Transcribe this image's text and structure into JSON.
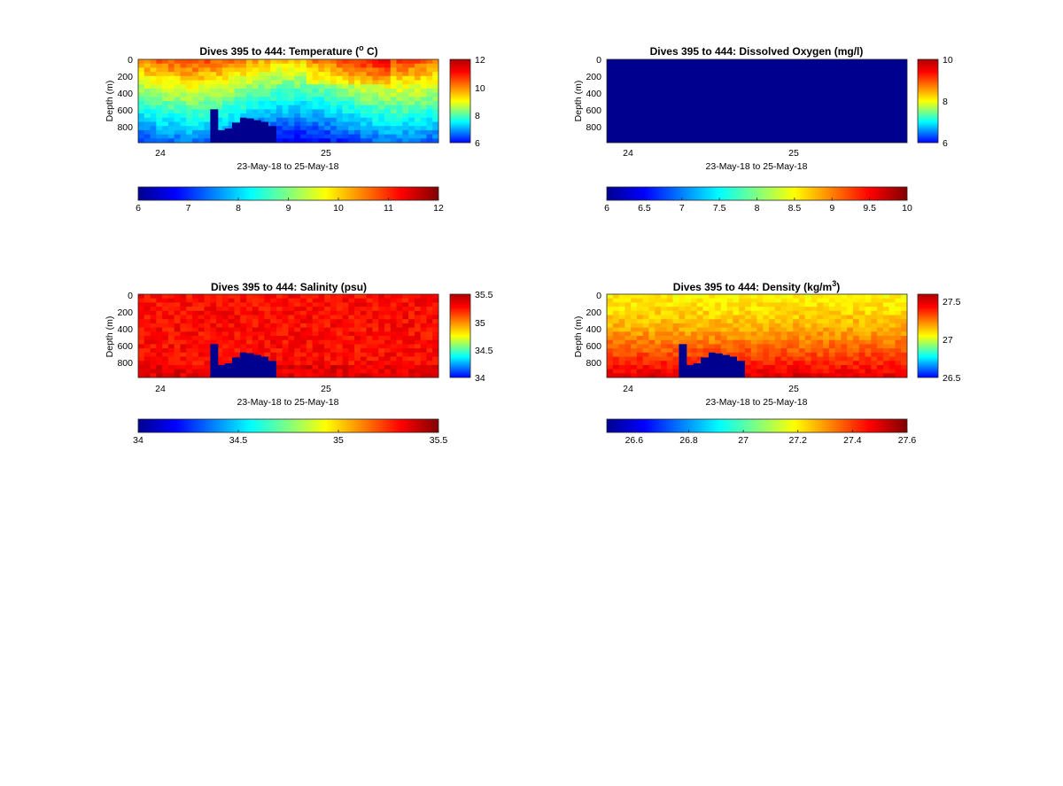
{
  "colormap": "jet",
  "panels": [
    {
      "title_prefix": "Dives 395 to 444: Temperature (",
      "title_sup": "o",
      "title_suffix": " C)",
      "ylabel": "Depth (m)",
      "xlabel": "23-May-18 to 25-May-18",
      "xticks": [
        "24",
        "25"
      ],
      "yticks": [
        "0",
        "200",
        "400",
        "600",
        "800"
      ],
      "side_cbar_ticks": [
        "12",
        "10",
        "8",
        "6"
      ],
      "bottom_cbar_ticks": [
        "6",
        "7",
        "8",
        "9",
        "10",
        "11",
        "12"
      ]
    },
    {
      "title_prefix": "Dives 395 to 444: Dissolved Oxygen (mg/l)",
      "title_sup": "",
      "title_suffix": "",
      "ylabel": "Depth (m)",
      "xlabel": "23-May-18 to 25-May-18",
      "xticks": [
        "24",
        "25"
      ],
      "yticks": [
        "0",
        "200",
        "400",
        "600",
        "800"
      ],
      "side_cbar_ticks": [
        "10",
        "8",
        "6"
      ],
      "bottom_cbar_ticks": [
        "6",
        "6.5",
        "7",
        "7.5",
        "8",
        "8.5",
        "9",
        "9.5",
        "10"
      ]
    },
    {
      "title_prefix": "Dives 395 to 444: Salinity (psu)",
      "title_sup": "",
      "title_suffix": "",
      "ylabel": "Depth (m)",
      "xlabel": "23-May-18 to 25-May-18",
      "xticks": [
        "24",
        "25"
      ],
      "yticks": [
        "0",
        "200",
        "400",
        "600",
        "800"
      ],
      "side_cbar_ticks": [
        "35.5",
        "35",
        "34.5",
        "34"
      ],
      "bottom_cbar_ticks": [
        "34",
        "34.5",
        "35",
        "35.5"
      ]
    },
    {
      "title_prefix": "Dives 395 to 444: Density (kg/m",
      "title_sup": "3",
      "title_suffix": ")",
      "ylabel": "Depth (m)",
      "xlabel": "23-May-18 to 25-May-18",
      "xticks": [
        "24",
        "25"
      ],
      "yticks": [
        "0",
        "200",
        "400",
        "600",
        "800"
      ],
      "side_cbar_ticks": [
        "27.5",
        "27",
        "26.5"
      ],
      "bottom_cbar_ticks": [
        "26.6",
        "26.8",
        "27",
        "27.2",
        "27.4",
        "27.6"
      ]
    }
  ],
  "chart_data": [
    {
      "type": "heatmap",
      "variable": "Temperature",
      "unit": "°C",
      "dives": [
        395,
        444
      ],
      "x_range_days": [
        "23-May-18",
        "25-May-18"
      ],
      "y_range_m": [
        0,
        1000
      ],
      "clim": [
        6,
        12
      ],
      "colormap": "jet",
      "description_values": {
        "surface": 10.5,
        "mid_200_500m": 9.0,
        "deep_800_1000m": 7.0
      },
      "no_data_patch": {
        "x_frac": [
          0.24,
          0.46
        ],
        "depth_top_m": 600
      }
    },
    {
      "type": "heatmap",
      "variable": "Dissolved Oxygen",
      "unit": "mg/l",
      "dives": [
        395,
        444
      ],
      "x_range_days": [
        "23-May-18",
        "25-May-18"
      ],
      "y_range_m": [
        0,
        1000
      ],
      "clim": [
        6,
        10
      ],
      "colormap": "jet",
      "description_values": {
        "all": 6.0
      }
    },
    {
      "type": "heatmap",
      "variable": "Salinity",
      "unit": "psu",
      "dives": [
        395,
        444
      ],
      "x_range_days": [
        "23-May-18",
        "25-May-18"
      ],
      "y_range_m": [
        0,
        1000
      ],
      "clim": [
        34,
        35.5
      ],
      "colormap": "jet",
      "description_values": {
        "typical": 35.3
      },
      "no_data_patch": {
        "x_frac": [
          0.24,
          0.46
        ],
        "depth_top_m": 600
      }
    },
    {
      "type": "heatmap",
      "variable": "Density",
      "unit": "kg/m^3",
      "dives": [
        395,
        444
      ],
      "x_range_days": [
        "23-May-18",
        "25-May-18"
      ],
      "y_range_m": [
        0,
        1000
      ],
      "clim": [
        26.5,
        27.6
      ],
      "colormap": "jet",
      "description_values": {
        "surface": 27.2,
        "deep": 27.5
      },
      "no_data_patch": {
        "x_frac": [
          0.24,
          0.46
        ],
        "depth_top_m": 600
      }
    }
  ]
}
